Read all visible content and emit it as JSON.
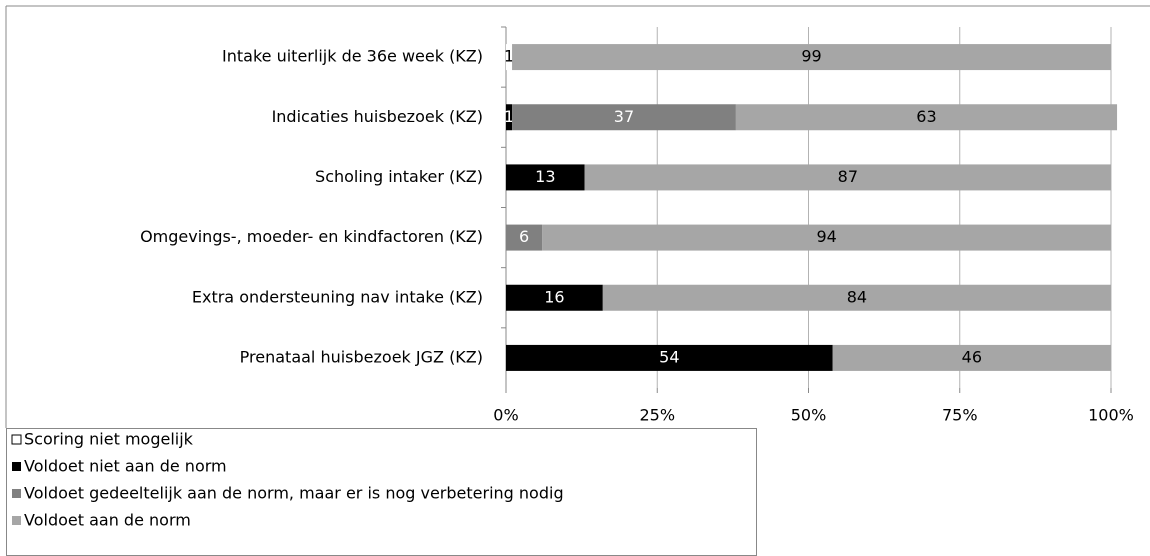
{
  "chart_data": {
    "type": "stacked-bar-horizontal",
    "categories": [
      "Intake uiterlijk de 36e week (KZ)",
      "Indicaties huisbezoek (KZ)",
      "Scholing  intaker (KZ)",
      "Omgevings-, moeder- en kindfactoren (KZ)",
      "Extra ondersteuning nav intake (KZ)",
      "Prenataal huisbezoek JGZ (KZ)"
    ],
    "series": [
      {
        "name": "Scoring niet mogelijk",
        "color": "#ffffff",
        "values": [
          1,
          0,
          0,
          0,
          0,
          0
        ]
      },
      {
        "name": "Voldoet niet aan de norm",
        "color": "#000000",
        "values": [
          0,
          1,
          13,
          0,
          16,
          54
        ]
      },
      {
        "name": "Voldoet gedeeltelijk aan de norm, maar er is nog verbetering nodig",
        "color": "#808080",
        "values": [
          0,
          37,
          0,
          6,
          0,
          0
        ]
      },
      {
        "name": "Voldoet aan de norm",
        "color": "#a6a6a6",
        "values": [
          99,
          63,
          87,
          94,
          84,
          46
        ]
      }
    ],
    "xlim": [
      0,
      100
    ],
    "xticks": [
      {
        "value": 0,
        "label": "0%"
      },
      {
        "value": 25,
        "label": "25%"
      },
      {
        "value": 50,
        "label": "50%"
      },
      {
        "value": 75,
        "label": "75%"
      },
      {
        "value": 100,
        "label": "100%"
      }
    ],
    "grid": true
  }
}
